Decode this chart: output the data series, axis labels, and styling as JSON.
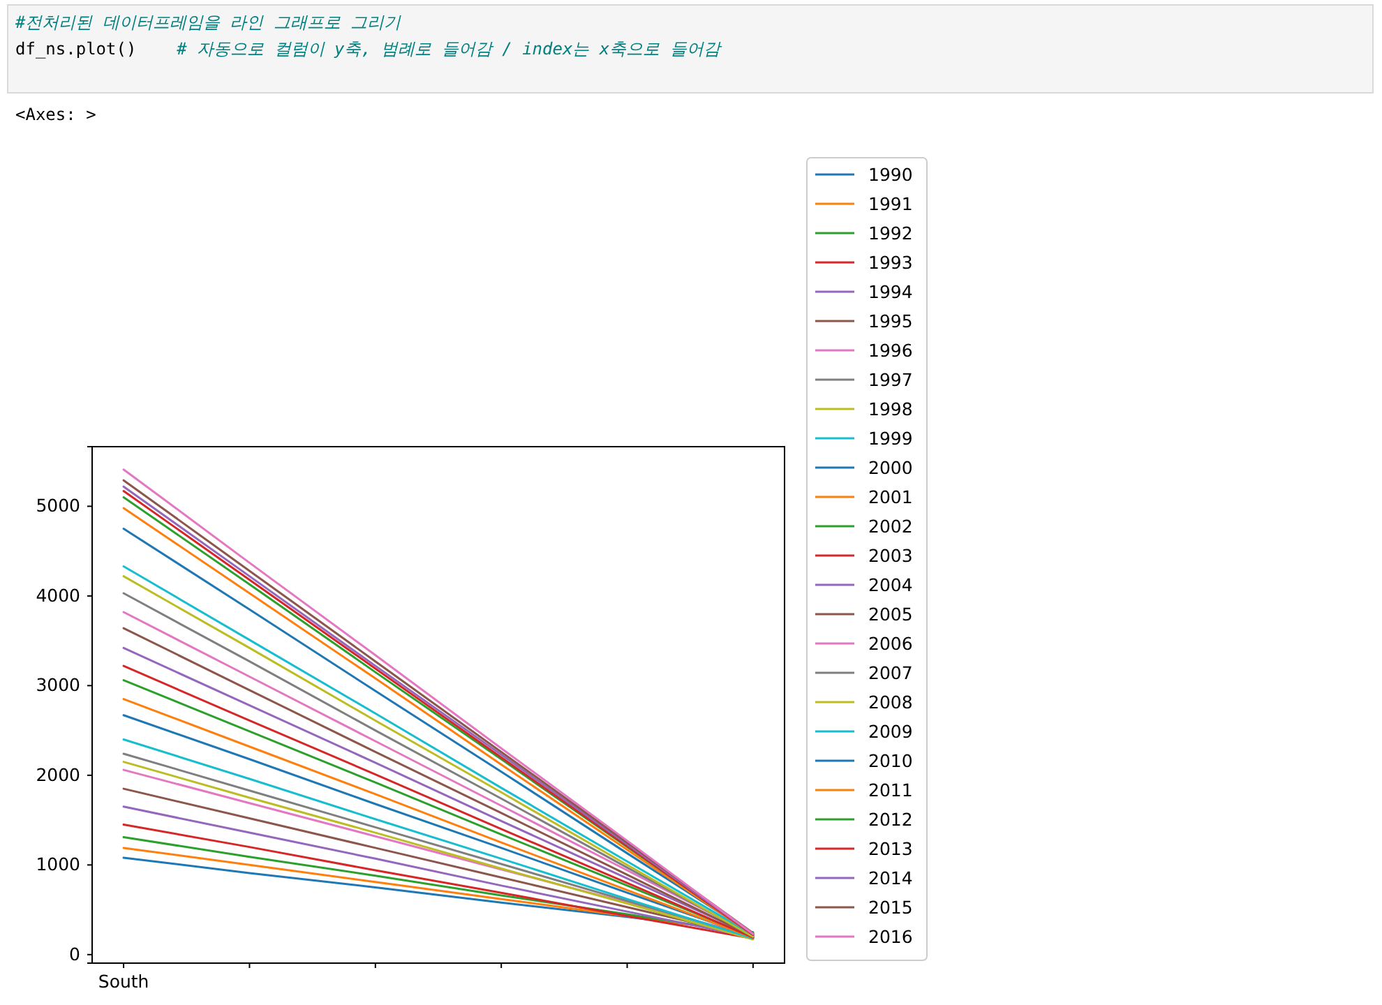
{
  "chart_data": {
    "type": "line",
    "annotations": [
      "#전처리된 데이터프레임을 라인 그래프로 그리기",
      "df_ns.plot()    # 자동으로 컬럼이 y축, 범례로 들어감 / index는 x축으로 들어감",
      "<Axes: >"
    ],
    "categories": [
      "South",
      null,
      null,
      null,
      null,
      null
    ],
    "ylim": [
      -95,
      5665
    ],
    "yticks": [
      0,
      1000,
      2000,
      3000,
      4000,
      5000
    ],
    "legend": "right",
    "grid": false,
    "series": [
      {
        "name": "1990",
        "color": "#1f77b4",
        "values": [
          1080,
          910,
          750,
          580,
          420,
          250
        ]
      },
      {
        "name": "1991",
        "color": "#ff7f0e",
        "values": [
          1190,
          1000,
          810,
          620,
          430,
          240
        ]
      },
      {
        "name": "1992",
        "color": "#2ca02c",
        "values": [
          1310,
          1090,
          880,
          660,
          450,
          230
        ]
      },
      {
        "name": "1993",
        "color": "#d62728",
        "values": [
          1450,
          1200,
          940,
          690,
          430,
          180
        ]
      },
      {
        "name": "1994",
        "color": "#9467bd",
        "values": [
          1650,
          1360,
          1070,
          770,
          480,
          190
        ]
      },
      {
        "name": "1995",
        "color": "#8c564b",
        "values": [
          1850,
          1520,
          1190,
          860,
          530,
          200
        ]
      },
      {
        "name": "1996",
        "color": "#e377c2",
        "values": [
          2060,
          1690,
          1320,
          950,
          580,
          210
        ]
      },
      {
        "name": "1997",
        "color": "#7f7f7f",
        "values": [
          2240,
          1830,
          1420,
          1010,
          600,
          190
        ]
      },
      {
        "name": "1998",
        "color": "#bcbd22",
        "values": [
          2150,
          1750,
          1360,
          960,
          570,
          170
        ]
      },
      {
        "name": "1999",
        "color": "#17becf",
        "values": [
          2400,
          1960,
          1510,
          1070,
          620,
          180
        ]
      },
      {
        "name": "2000",
        "color": "#1f77b4",
        "values": [
          2670,
          2180,
          1680,
          1190,
          690,
          200
        ]
      },
      {
        "name": "2001",
        "color": "#ff7f0e",
        "values": [
          2850,
          2320,
          1790,
          1250,
          720,
          190
        ]
      },
      {
        "name": "2002",
        "color": "#2ca02c",
        "values": [
          3060,
          2490,
          1920,
          1340,
          770,
          200
        ]
      },
      {
        "name": "2003",
        "color": "#d62728",
        "values": [
          3220,
          2610,
          2010,
          1400,
          800,
          190
        ]
      },
      {
        "name": "2004",
        "color": "#9467bd",
        "values": [
          3420,
          2780,
          2140,
          1490,
          850,
          210
        ]
      },
      {
        "name": "2005",
        "color": "#8c564b",
        "values": [
          3640,
          2950,
          2260,
          1580,
          890,
          200
        ]
      },
      {
        "name": "2006",
        "color": "#e377c2",
        "values": [
          3820,
          3100,
          2380,
          1660,
          940,
          220
        ]
      },
      {
        "name": "2007",
        "color": "#7f7f7f",
        "values": [
          4030,
          3270,
          2500,
          1740,
          970,
          210
        ]
      },
      {
        "name": "2008",
        "color": "#bcbd22",
        "values": [
          4220,
          3420,
          2610,
          1810,
          1000,
          200
        ]
      },
      {
        "name": "2009",
        "color": "#17becf",
        "values": [
          4330,
          3510,
          2690,
          1860,
          1040,
          220
        ]
      },
      {
        "name": "2010",
        "color": "#1f77b4",
        "values": [
          4750,
          3850,
          2940,
          2040,
          1130,
          230
        ]
      },
      {
        "name": "2011",
        "color": "#ff7f0e",
        "values": [
          4980,
          4030,
          3080,
          2120,
          1170,
          220
        ]
      },
      {
        "name": "2012",
        "color": "#2ca02c",
        "values": [
          5100,
          4130,
          3150,
          2180,
          1200,
          230
        ]
      },
      {
        "name": "2013",
        "color": "#d62728",
        "values": [
          5170,
          4180,
          3190,
          2200,
          1210,
          220
        ]
      },
      {
        "name": "2014",
        "color": "#9467bd",
        "values": [
          5220,
          4220,
          3220,
          2230,
          1230,
          230
        ]
      },
      {
        "name": "2015",
        "color": "#8c564b",
        "values": [
          5290,
          4280,
          3270,
          2260,
          1250,
          240
        ]
      },
      {
        "name": "2016",
        "color": "#e377c2",
        "values": [
          5410,
          4370,
          3340,
          2300,
          1270,
          230
        ]
      }
    ]
  }
}
